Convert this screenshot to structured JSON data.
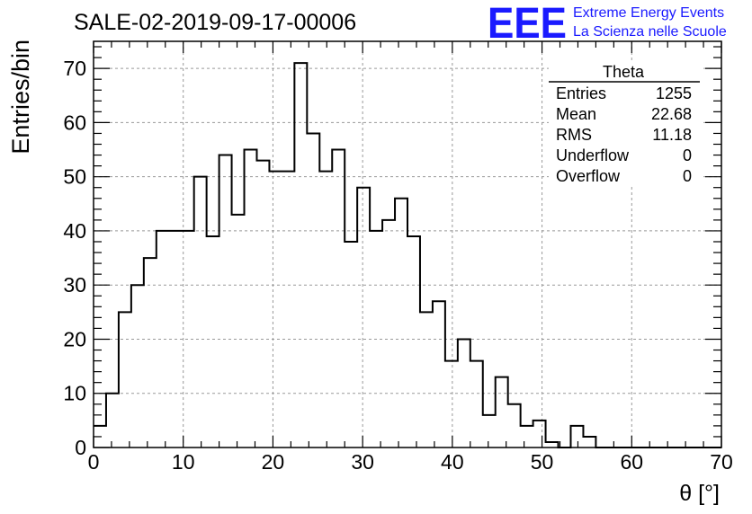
{
  "chart_data": {
    "type": "bar",
    "title": "SALE-02-2019-09-17-00006",
    "xlabel": "θ [°]",
    "ylabel": "Entries/bin",
    "xlim": [
      0,
      70
    ],
    "ylim": [
      0,
      75
    ],
    "bin_width": 1.4,
    "x_ticks": [
      "0",
      "10",
      "20",
      "30",
      "40",
      "50",
      "60",
      "70"
    ],
    "y_ticks": [
      "0",
      "10",
      "20",
      "30",
      "40",
      "50",
      "60",
      "70"
    ],
    "grid": true,
    "values": [
      4,
      10,
      25,
      30,
      35,
      40,
      40,
      40,
      50,
      39,
      54,
      43,
      55,
      53,
      51,
      51,
      71,
      58,
      51,
      55,
      38,
      48,
      40,
      42,
      46,
      39,
      25,
      27,
      16,
      20,
      16,
      6,
      13,
      8,
      4,
      5,
      1,
      0,
      4,
      2,
      0,
      0,
      0,
      0,
      0,
      0,
      0,
      0,
      0,
      0
    ],
    "line_color": "#000000",
    "stats_box": {
      "title": "Theta",
      "rows": [
        {
          "label": "Entries",
          "value": "1255"
        },
        {
          "label": "Mean",
          "value": "22.68"
        },
        {
          "label": "RMS",
          "value": "11.18"
        },
        {
          "label": "Underflow",
          "value": "0"
        },
        {
          "label": "Overflow",
          "value": "0"
        }
      ]
    }
  },
  "branding": {
    "logo_text": "EEE",
    "line1": "Extreme Energy Events",
    "line2": "La Scienza nelle Scuole",
    "color": "#1a1aff"
  }
}
